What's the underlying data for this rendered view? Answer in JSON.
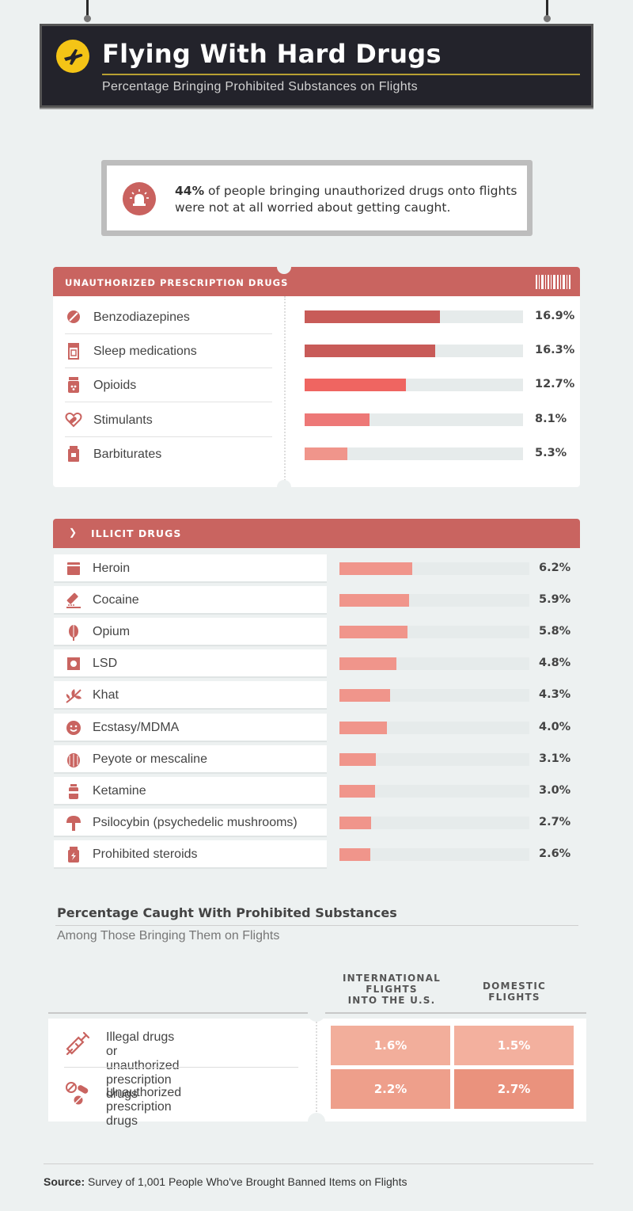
{
  "header": {
    "title": "Flying With Hard Drugs",
    "subtitle": "Percentage Bringing Prohibited Substances on Flights"
  },
  "callout": {
    "highlight": "44%",
    "text": " of people bringing unauthorized drugs onto flights were not at all worried about getting caught."
  },
  "colors": {
    "bar_dark": "#c85b58",
    "bar_bright": "#ef6561",
    "bar_mid": "#ed7877",
    "bar_light": "#f0958b",
    "accent": "#c96460",
    "plane": "#f4c416"
  },
  "chart_data": [
    {
      "type": "bar",
      "title": "UNAUTHORIZED PRESCRIPTION DRUGS",
      "categories": [
        "Benzodiazepines",
        "Sleep medications",
        "Opioids",
        "Stimulants",
        "Barbiturates"
      ],
      "values": [
        16.9,
        16.3,
        12.7,
        8.1,
        5.3
      ],
      "labels": [
        "16.9%",
        "16.3%",
        "12.7%",
        "8.1%",
        "5.3%"
      ],
      "icons": [
        "no-pill-icon",
        "pill-bottle-icon",
        "pill-jar-icon",
        "capsule-heart-icon",
        "medicine-bottle-icon"
      ],
      "bar_colors": [
        "#c85b58",
        "#c85b58",
        "#ef6561",
        "#ed7877",
        "#f0958b"
      ]
    },
    {
      "type": "bar",
      "title": "ILLICIT DRUGS",
      "categories": [
        "Heroin",
        "Cocaine",
        "Opium",
        "LSD",
        "Khat",
        "Ecstasy/MDMA",
        "Peyote or mescaline",
        "Ketamine",
        "Psilocybin (psychedelic mushrooms)",
        "Prohibited steroids"
      ],
      "values": [
        6.2,
        5.9,
        5.8,
        4.8,
        4.3,
        4.0,
        3.1,
        3.0,
        2.7,
        2.6
      ],
      "labels": [
        "6.2%",
        "5.9%",
        "5.8%",
        "4.8%",
        "4.3%",
        "4.0%",
        "3.1%",
        "3.0%",
        "2.7%",
        "2.6%"
      ],
      "icons": [
        "baggie-icon",
        "razor-line-icon",
        "poppy-icon",
        "blotter-icon",
        "leaf-icon",
        "smiley-pill-icon",
        "cactus-icon",
        "vial-icon",
        "mushroom-icon",
        "steroid-bottle-icon"
      ]
    },
    {
      "type": "table",
      "title": "Percentage Caught With Prohibited Substances",
      "subtitle": "Among Those Bringing Them on Flights",
      "columns": [
        "INTERNATIONAL FLIGHTS INTO THE U.S.",
        "DOMESTIC FLIGHTS"
      ],
      "rows": [
        {
          "label": "Illegal drugs or unauthorized prescription drugs",
          "values": [
            1.6,
            1.5
          ],
          "labels": [
            "1.6%",
            "1.5%"
          ]
        },
        {
          "label": "Unauthorized prescription drugs",
          "values": [
            2.2,
            2.7
          ],
          "labels": [
            "2.2%",
            "2.7%"
          ]
        }
      ]
    }
  ],
  "caught": {
    "col1_line1": "INTERNATIONAL",
    "col1_line2": "FLIGHTS",
    "col1_line3": "INTO THE U.S.",
    "col2_line1": "DOMESTIC",
    "col2_line2": "FLIGHTS",
    "row1_line1": "Illegal drugs or unauthorized",
    "row1_line2": "prescription drugs"
  },
  "source": {
    "label": "Source:",
    "text": " Survey of 1,001 People Who've Brought Banned Items on Flights"
  }
}
